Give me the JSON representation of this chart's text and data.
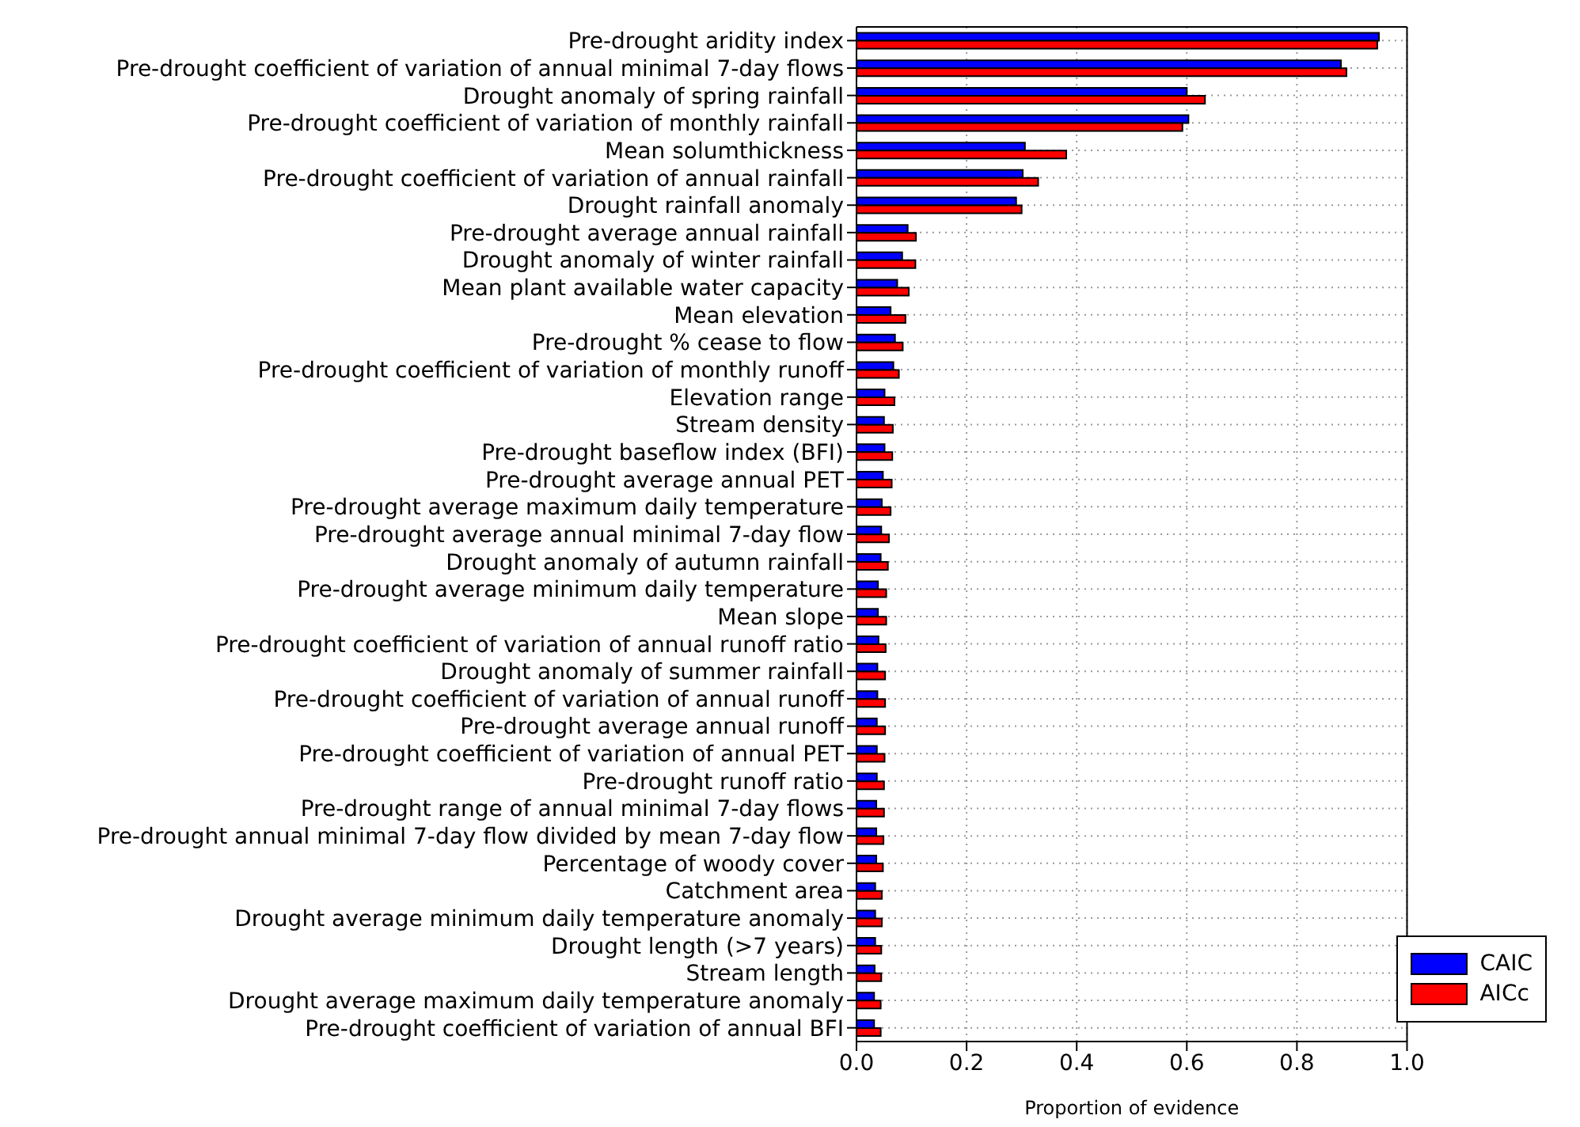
{
  "chart_data": {
    "type": "bar",
    "orientation": "horizontal",
    "xlabel": "Proportion of evidence",
    "categories": [
      "Pre-drought aridity index",
      "Pre-drought coefficient of variation of annual minimal 7-day flows",
      "Drought anomaly of spring rainfall",
      "Pre-drought coefficient of variation of monthly rainfall",
      "Mean solumthickness",
      "Pre-drought coefficient of variation of annual rainfall",
      "Drought rainfall anomaly",
      "Pre-drought average annual rainfall",
      "Drought anomaly of winter rainfall",
      "Mean plant available water capacity",
      "Mean elevation",
      "Pre-drought % cease to flow",
      "Pre-drought coefficient of variation of monthly runoff",
      "Elevation range",
      "Stream density",
      "Pre-drought baseflow index (BFI)",
      "Pre-drought average annual PET",
      "Pre-drought average maximum daily temperature",
      "Pre-drought average annual minimal 7-day flow",
      "Drought anomaly of autumn rainfall",
      "Pre-drought average minimum daily temperature",
      "Mean slope",
      "Pre-drought coefficient of variation of annual runoff ratio",
      "Drought anomaly of summer rainfall",
      "Pre-drought coefficient of variation of annual runoff",
      "Pre-drought average annual runoff",
      "Pre-drought coefficient of variation of annual PET",
      "Pre-drought runoff ratio",
      "Pre-drought range of annual minimal 7-day flows",
      "Pre-drought annual minimal 7-day flow divided by mean 7-day flow",
      "Percentage of woody cover",
      "Catchment area",
      "Drought average minimum daily temperature anomaly",
      "Drought length (>7 years)",
      "Stream length",
      "Drought average maximum daily temperature anomaly",
      "Pre-drought coefficient of variation of annual BFI"
    ],
    "series": [
      {
        "name": "CAIC",
        "color": "#0000ff",
        "values": [
          0.949,
          0.88,
          0.6,
          0.603,
          0.306,
          0.302,
          0.29,
          0.093,
          0.083,
          0.074,
          0.062,
          0.07,
          0.067,
          0.051,
          0.05,
          0.051,
          0.048,
          0.046,
          0.045,
          0.044,
          0.039,
          0.039,
          0.04,
          0.038,
          0.038,
          0.037,
          0.037,
          0.037,
          0.036,
          0.036,
          0.036,
          0.034,
          0.034,
          0.034,
          0.033,
          0.032,
          0.032
        ]
      },
      {
        "name": "AICc",
        "color": "#ff0000",
        "values": [
          0.946,
          0.89,
          0.633,
          0.592,
          0.381,
          0.33,
          0.3,
          0.108,
          0.107,
          0.095,
          0.089,
          0.084,
          0.077,
          0.069,
          0.066,
          0.065,
          0.064,
          0.062,
          0.059,
          0.057,
          0.054,
          0.054,
          0.053,
          0.052,
          0.052,
          0.052,
          0.051,
          0.05,
          0.05,
          0.049,
          0.048,
          0.046,
          0.046,
          0.045,
          0.045,
          0.044,
          0.044
        ]
      }
    ],
    "xlim": [
      0,
      1
    ],
    "xticks": [
      {
        "value": 0,
        "label": "0.0"
      },
      {
        "value": 0.2,
        "label": "0.2"
      },
      {
        "value": 0.4,
        "label": "0.4"
      },
      {
        "value": 0.6,
        "label": "0.6"
      },
      {
        "value": 0.8,
        "label": "0.8"
      },
      {
        "value": 1,
        "label": "1.0"
      }
    ],
    "grid": true,
    "legend": "bottom right"
  }
}
